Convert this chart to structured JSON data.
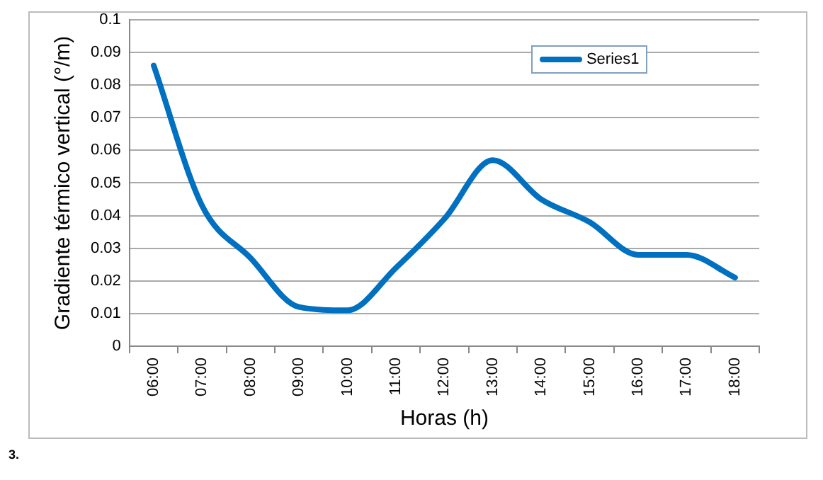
{
  "chart_data": {
    "type": "line",
    "xlabel": "Horas (h)",
    "ylabel": "Gradiente térmico vertical (°/m)",
    "categories": [
      "06:00",
      "07:00",
      "08:00",
      "09:00",
      "10:00",
      "11:00",
      "12:00",
      "13:00",
      "14:00",
      "15:00",
      "16:00",
      "17:00",
      "18:00"
    ],
    "series": [
      {
        "name": "Series1",
        "color": "#0070c0",
        "values": [
          0.086,
          0.043,
          0.027,
          0.012,
          0.011,
          0.024,
          0.039,
          0.057,
          0.045,
          0.038,
          0.028,
          0.028,
          0.021
        ]
      }
    ],
    "ylim": [
      0,
      0.1
    ],
    "yticks": [
      0,
      0.01,
      0.02,
      0.03,
      0.04,
      0.05,
      0.06,
      0.07,
      0.08,
      0.09,
      0.1
    ],
    "grid": "y",
    "legend": "top right",
    "marker": "none",
    "line_style": "solid",
    "annotations": [
      "3."
    ]
  }
}
